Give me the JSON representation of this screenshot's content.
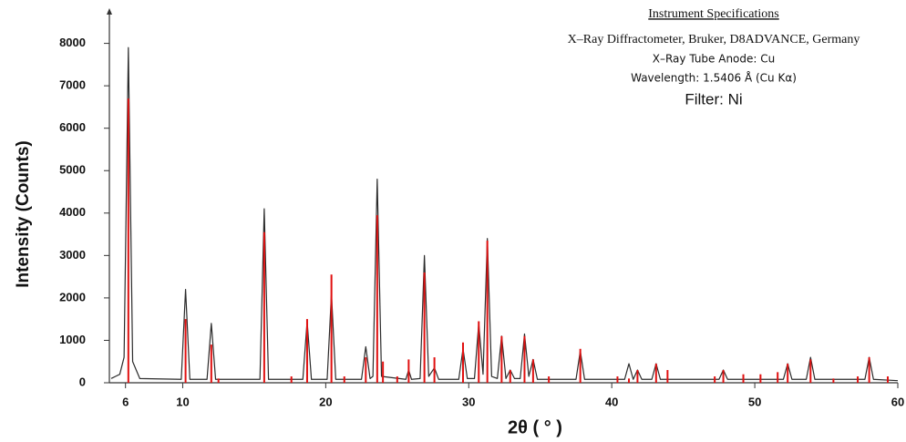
{
  "chart_data": {
    "type": "line",
    "x_label": "2θ ( ° )",
    "y_label": "Intensity (Counts)",
    "annotations": [
      "Instrument Specifications",
      "X–Ray Diffractometer, Bruker, D8ADVANCE, Germany",
      "X–Ray Tube Anode: Cu",
      "Wavelength: 1.5406 Å (Cu Kα)",
      "Filter: Ni"
    ],
    "xlim": [
      5,
      60
    ],
    "ylim": [
      0,
      8700
    ],
    "xticks": [
      6,
      10,
      20,
      30,
      40,
      50,
      60
    ],
    "yticks": [
      0,
      1000,
      2000,
      3000,
      4000,
      5000,
      6000,
      7000,
      8000
    ],
    "series": [
      {
        "style": "line",
        "color": "#2b2b2b",
        "x": [
          5,
          5.6,
          5.9,
          6.2,
          6.5,
          7,
          9.9,
          10.2,
          10.5,
          11.7,
          12.0,
          12.3,
          15.4,
          15.7,
          16.0,
          18.4,
          18.7,
          19.0,
          20.1,
          20.4,
          20.7,
          22.5,
          22.8,
          23.1,
          23.3,
          23.6,
          23.9,
          25.6,
          25.8,
          26.0,
          26.6,
          26.9,
          27.2,
          27.6,
          27.9,
          29.3,
          29.6,
          29.9,
          30.4,
          30.7,
          31.0,
          31.3,
          31.6,
          32.0,
          32.3,
          32.6,
          32.9,
          33.2,
          33.6,
          33.9,
          34.2,
          34.5,
          34.8,
          37.5,
          37.8,
          38.1,
          40.9,
          41.2,
          41.5,
          41.8,
          42.1,
          42.8,
          43.1,
          43.4,
          47.5,
          47.8,
          48.1,
          52.0,
          52.3,
          52.6,
          53.6,
          53.9,
          54.2,
          57.7,
          58.0,
          58.3,
          60
        ],
        "values": [
          100,
          200,
          600,
          7900,
          500,
          100,
          80,
          2200,
          80,
          80,
          1400,
          80,
          80,
          4100,
          80,
          80,
          1450,
          80,
          80,
          2100,
          80,
          80,
          850,
          100,
          150,
          4800,
          150,
          80,
          300,
          80,
          100,
          3000,
          150,
          350,
          80,
          80,
          800,
          100,
          100,
          1400,
          200,
          3400,
          150,
          100,
          1100,
          100,
          300,
          100,
          100,
          1150,
          150,
          550,
          80,
          80,
          750,
          80,
          80,
          450,
          80,
          300,
          80,
          80,
          450,
          80,
          80,
          300,
          80,
          80,
          450,
          80,
          80,
          600,
          80,
          80,
          600,
          80,
          50
        ]
      },
      {
        "style": "stem",
        "color": "#e01010",
        "x": [
          6.2,
          10.2,
          12.0,
          12.5,
          15.7,
          17.6,
          18.7,
          20.4,
          21.3,
          22.8,
          23.6,
          24.0,
          25.0,
          25.8,
          26.9,
          27.6,
          29.6,
          30.7,
          31.3,
          32.3,
          32.9,
          33.9,
          34.5,
          35.6,
          37.8,
          40.4,
          41.2,
          41.8,
          43.1,
          43.9,
          47.2,
          47.8,
          49.2,
          50.4,
          51.6,
          52.3,
          53.9,
          55.5,
          57.2,
          58.0,
          59.3
        ],
        "values": [
          6700,
          1500,
          900,
          100,
          3550,
          150,
          1500,
          2550,
          150,
          600,
          3950,
          500,
          150,
          550,
          2600,
          600,
          950,
          1450,
          3350,
          1100,
          300,
          1100,
          550,
          150,
          800,
          150,
          100,
          300,
          450,
          300,
          150,
          300,
          200,
          200,
          250,
          450,
          550,
          100,
          150,
          600,
          150
        ]
      }
    ]
  }
}
